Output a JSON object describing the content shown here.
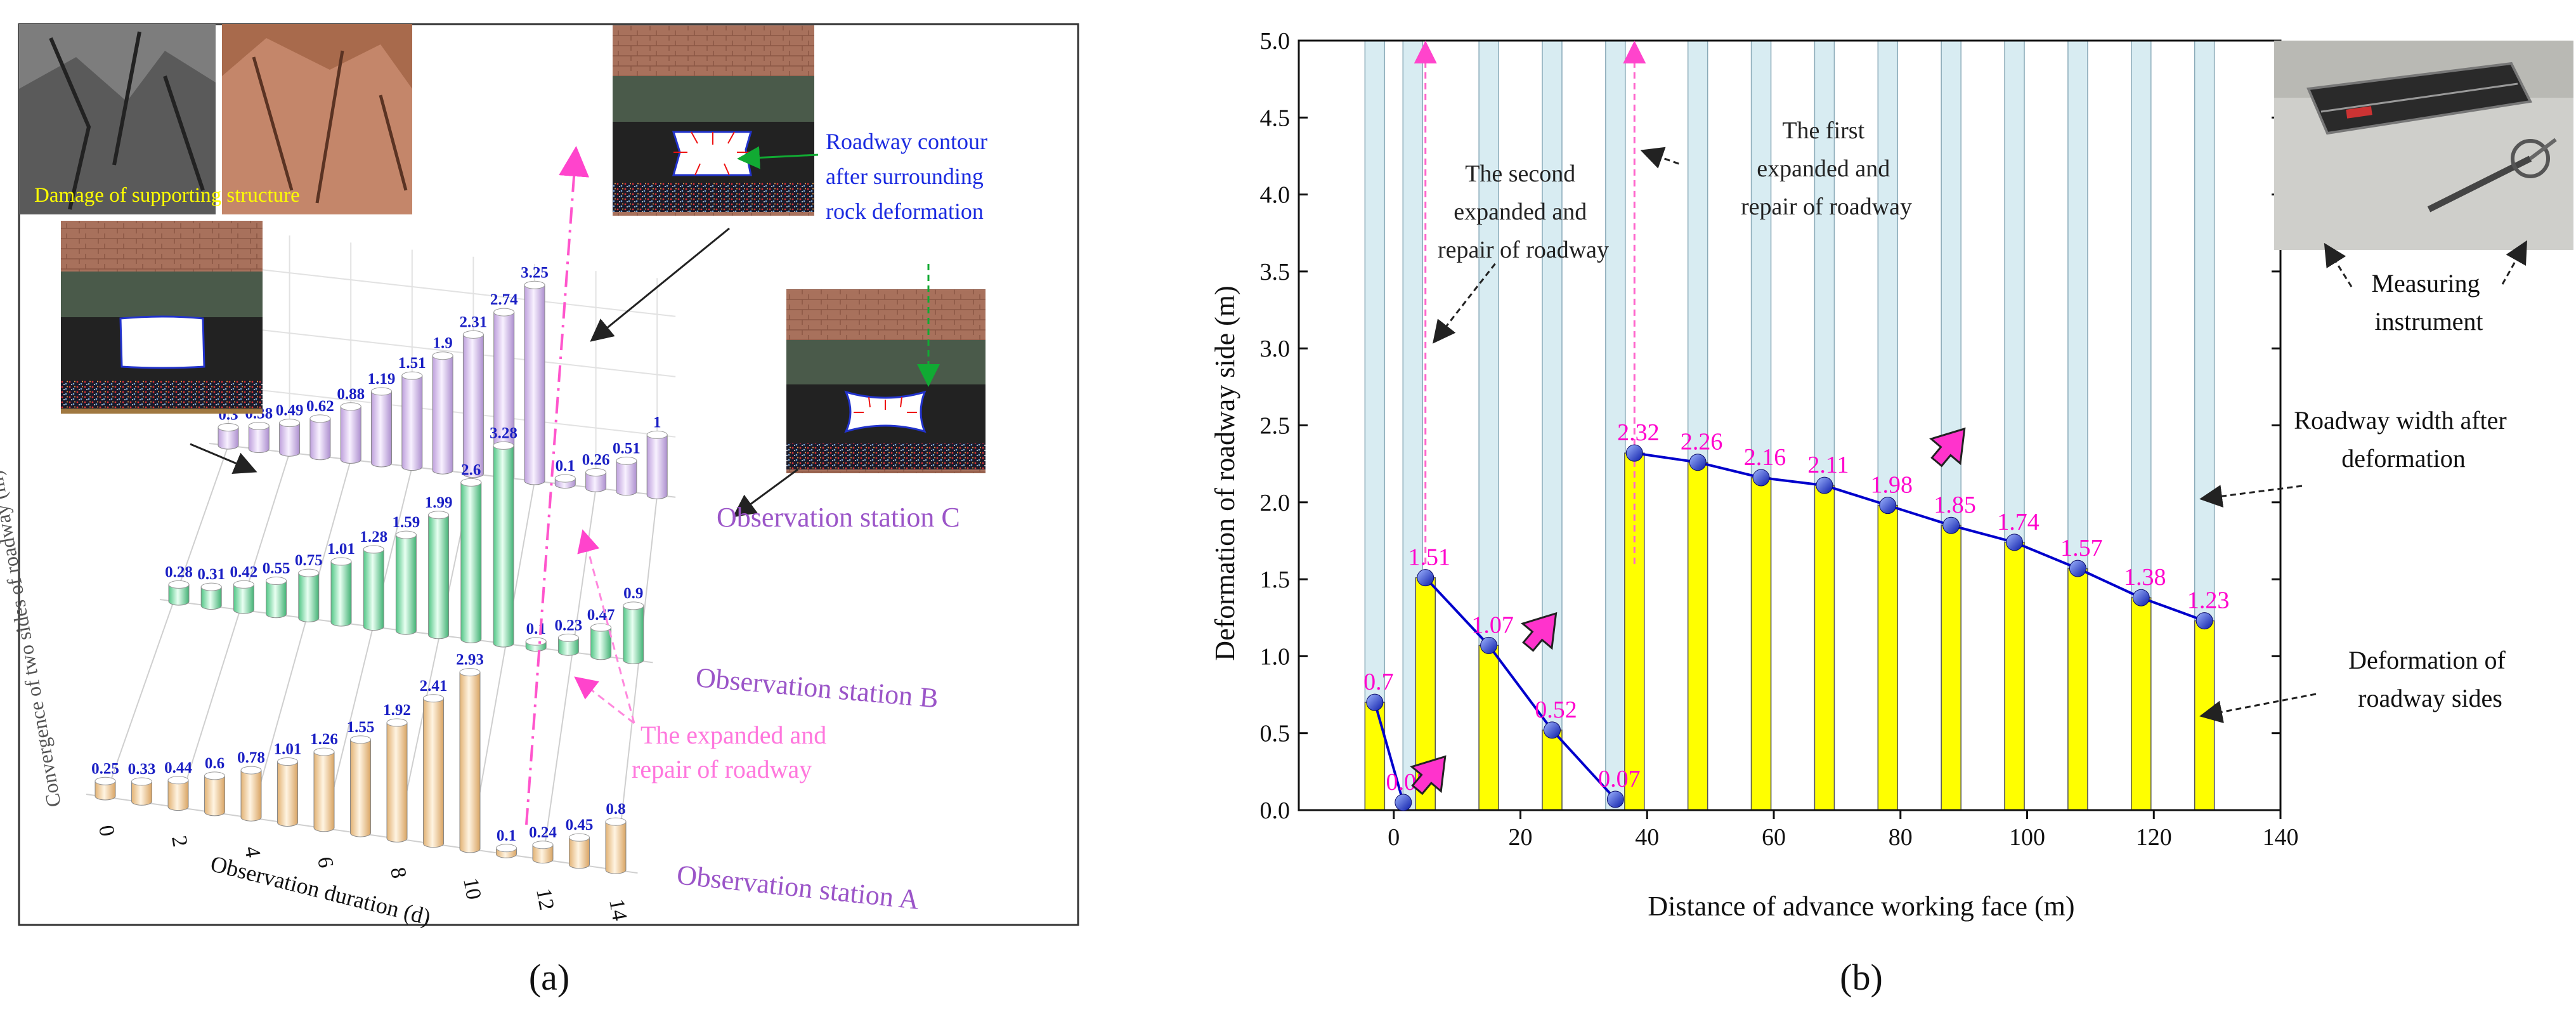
{
  "panel_a": {
    "label": "(a)",
    "photo_caption": "Damage of supporting structure",
    "callouts": {
      "contour": [
        "Roadway contour",
        "after surrounding",
        "rock deformation"
      ],
      "repair": [
        "The expanded and",
        "repair of roadway"
      ]
    },
    "stations": {
      "A": "Observation station A",
      "B": "Observation station B",
      "C": "Observation station C"
    }
  },
  "panel_b": {
    "label": "(b)",
    "callouts": {
      "second_repair": [
        "The second",
        "expanded and",
        "repair of roadway"
      ],
      "first_repair": [
        "The first",
        "expanded and",
        "repair of roadway"
      ],
      "width_after": [
        "Roadway width after",
        "deformation"
      ],
      "deformation_sides": [
        "Deformation of",
        "roadway sides"
      ],
      "instrument": [
        "Measuring",
        "instrument"
      ]
    }
  },
  "chart_data": [
    {
      "type": "bar",
      "subtype": "3d-cylinder",
      "xlabel": "Observation duration (d)",
      "ylabel": "Convergence of two sides of roadway (m)",
      "x_ticks": [
        0,
        2,
        4,
        6,
        8,
        10,
        12,
        14
      ],
      "series": [
        {
          "name": "Observation station A",
          "color": "#f2c88e",
          "values": [
            "0.25",
            "0.33",
            "0.44",
            "0.6",
            "0.78",
            "1.01",
            "1.26",
            "1.55",
            "1.92",
            "2.41",
            "2.93",
            "0.1",
            "0.24",
            "0.45",
            "0.8"
          ]
        },
        {
          "name": "Observation station B",
          "color": "#7fd9a6",
          "values": [
            "0.28",
            "0.31",
            "0.42",
            "0.55",
            "0.75",
            "1.01",
            "1.28",
            "1.59",
            "1.99",
            "2.6",
            "3.28",
            "0.1",
            "0.23",
            "0.47",
            "0.9"
          ]
        },
        {
          "name": "Observation station C",
          "color": "#d5bdea",
          "values": [
            "0.3",
            "0.38",
            "0.49",
            "0.62",
            "0.88",
            "1.19",
            "1.51",
            "1.9",
            "2.31",
            "2.74",
            "3.25",
            "0.1",
            "0.26",
            "0.51",
            "1"
          ]
        }
      ]
    },
    {
      "type": "bar",
      "xlabel": "Distance of advance working face (m)",
      "ylabel": "Deformation of roadway side (m)",
      "xlim": [
        -15,
        140
      ],
      "ylim": [
        0,
        5
      ],
      "x_ticks": [
        0,
        20,
        40,
        60,
        80,
        100,
        120,
        140
      ],
      "y_ticks": [
        "0.0",
        "0.5",
        "1.0",
        "1.5",
        "2.0",
        "2.5",
        "3.0",
        "3.5",
        "4.0",
        "4.5",
        "5.0"
      ],
      "width_bar_x": [
        -3,
        3,
        15,
        25,
        35,
        48,
        58,
        68,
        78,
        88,
        98,
        108,
        118,
        128
      ],
      "points": [
        {
          "x": -3,
          "y": 0.7,
          "label": "0.7"
        },
        {
          "x": 1.5,
          "y": 0.05,
          "label": "0.05"
        },
        {
          "x": 5,
          "y": 1.51,
          "label": "1.51"
        },
        {
          "x": 15,
          "y": 1.07,
          "label": "1.07"
        },
        {
          "x": 25,
          "y": 0.52,
          "label": "0.52"
        },
        {
          "x": 35,
          "y": 0.07,
          "label": "0.07"
        },
        {
          "x": 38,
          "y": 2.32,
          "label": "2.32"
        },
        {
          "x": 48,
          "y": 2.26,
          "label": "2.26"
        },
        {
          "x": 58,
          "y": 2.16,
          "label": "2.16"
        },
        {
          "x": 68,
          "y": 2.11,
          "label": "2.11"
        },
        {
          "x": 78,
          "y": 1.98,
          "label": "1.98"
        },
        {
          "x": 88,
          "y": 1.85,
          "label": "1.85"
        },
        {
          "x": 98,
          "y": 1.74,
          "label": "1.74"
        },
        {
          "x": 108,
          "y": 1.57,
          "label": "1.57"
        },
        {
          "x": 118,
          "y": 1.38,
          "label": "1.38"
        },
        {
          "x": 128,
          "y": 1.23,
          "label": "1.23"
        }
      ],
      "colors": {
        "deformation_bar": "#ffff00",
        "width_bar": "#d8ecf2",
        "line": "#0000cc",
        "label": "#ff00cc"
      }
    }
  ]
}
